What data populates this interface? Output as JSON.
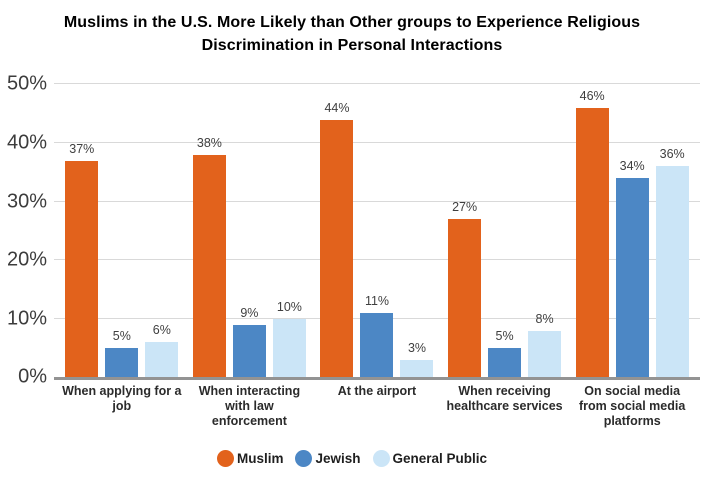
{
  "title": "Muslims in the U.S. More Likely than Other groups to Experience Religious Discrimination in Personal Interactions",
  "theme": {
    "background": "#ffffff",
    "grid_color": "#d9d9d9",
    "axis_line_color": "#939393",
    "tick_label_color": "#3c3c3c",
    "value_label_color": "#3f3f3f",
    "category_label_color": "#2b2b2b",
    "title_color": "#000000",
    "legend_text_color": "#1f1f1f"
  },
  "chart_data": {
    "type": "bar",
    "title": "Muslims in the U.S. More Likely than Other groups to Experience Religious Discrimination in Personal Interactions",
    "categories": [
      "When applying for a job",
      "When interacting with law enforcement",
      "At the airport",
      "When receiving healthcare services",
      "On social media from social media platforms"
    ],
    "series": [
      {
        "name": "Muslim",
        "color": "#E2621C",
        "values": [
          37,
          38,
          44,
          27,
          46
        ]
      },
      {
        "name": "Jewish",
        "color": "#4C87C5",
        "values": [
          5,
          9,
          11,
          5,
          34
        ]
      },
      {
        "name": "General Public",
        "color": "#CBE5F7",
        "values": [
          6,
          10,
          3,
          8,
          36
        ]
      }
    ],
    "xlabel": "",
    "ylabel": "",
    "ylim": [
      0,
      50
    ],
    "yticks": [
      0,
      10,
      20,
      30,
      40,
      50
    ],
    "ytick_suffix": "%",
    "value_label_suffix": "%",
    "grid": "horizontal",
    "legend_position": "bottom"
  }
}
